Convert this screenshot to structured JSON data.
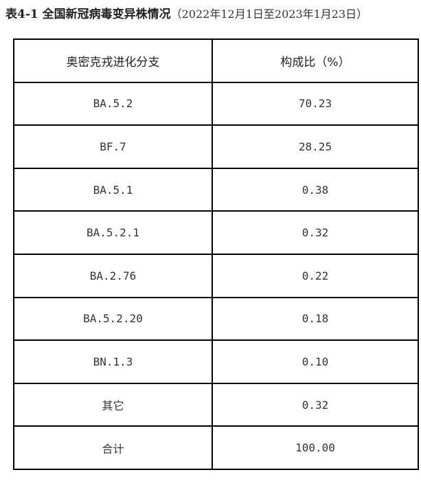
{
  "title": {
    "main": "表4-1 全国新冠病毒变异株情况",
    "sub": "（2022年12月1日至2023年1月23日）"
  },
  "table": {
    "headers": [
      "奥密克戎进化分支",
      "构成比（%）"
    ],
    "rows": [
      [
        "BA.5.2",
        "70.23"
      ],
      [
        "BF.7",
        "28.25"
      ],
      [
        "BA.5.1",
        "0.38"
      ],
      [
        "BA.5.2.1",
        "0.32"
      ],
      [
        "BA.2.76",
        "0.22"
      ],
      [
        "BA.5.2.20",
        "0.18"
      ],
      [
        "BN.1.3",
        "0.10"
      ],
      [
        "其它",
        "0.32"
      ],
      [
        "合计",
        "100.00"
      ]
    ]
  }
}
